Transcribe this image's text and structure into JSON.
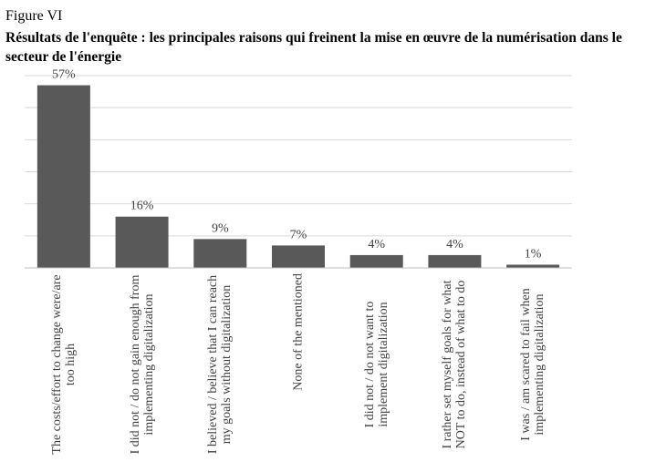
{
  "chart_data": {
    "type": "bar",
    "figure_label": "Figure VI",
    "title": "Résultats de l'enquête : les principales raisons qui freinent la mise en œuvre de la numérisation dans le secteur de l'énergie",
    "categories": [
      "The costs/effort to change were/are too high",
      "I did not / do not gain enough from implementing digitalization",
      "I believed / believe that I can reach my goals without digitalization",
      "None of the mentioned",
      "I did not / do not want to implement digitalization",
      "I rather set myself goals for what NOT to do, instead of what to do",
      "I was / am scared to fail when implementing digitalization"
    ],
    "values": [
      57,
      16,
      9,
      7,
      4,
      4,
      1
    ],
    "value_labels": [
      "57%",
      "16%",
      "9%",
      "7%",
      "4%",
      "4%",
      "1%"
    ],
    "color": "#595959",
    "ylim": [
      0,
      60
    ],
    "yticks": [
      0,
      10,
      20,
      30,
      40,
      50,
      60
    ],
    "grid": true
  }
}
